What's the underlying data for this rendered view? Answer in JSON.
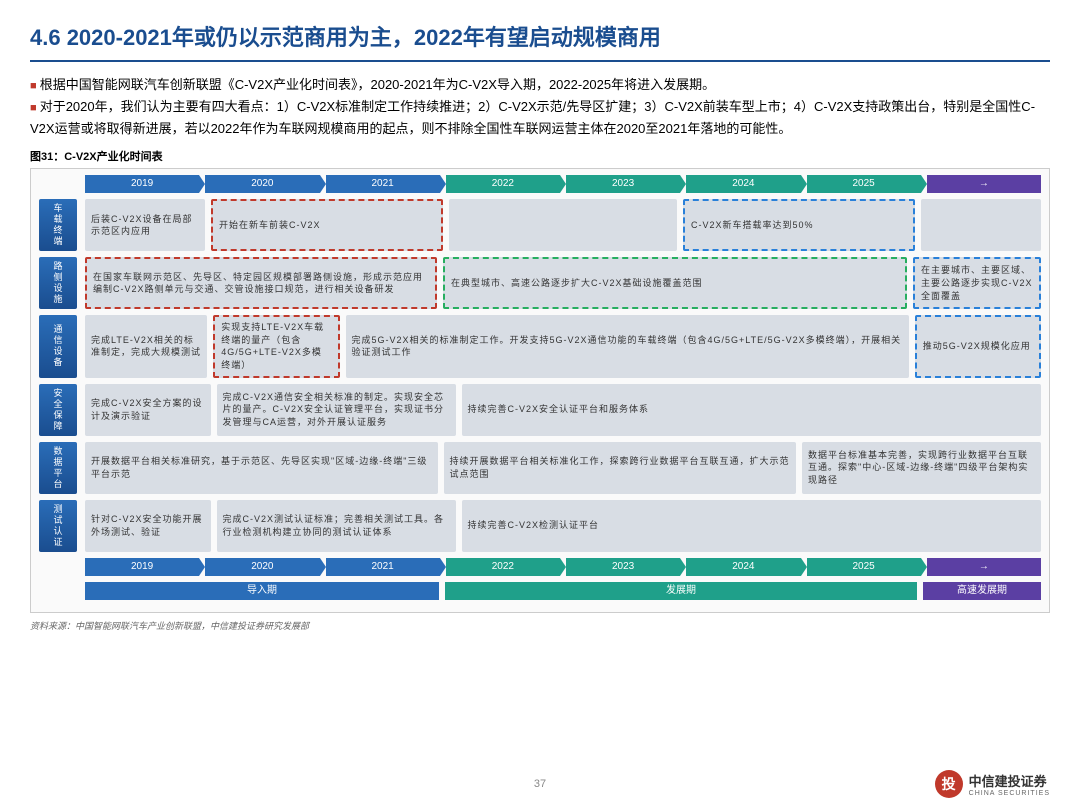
{
  "title": "4.6 2020-2021年或仍以示范商用为主，2022年有望启动规模商用",
  "bullets": [
    "根据中国智能网联汽车创新联盟《C-V2X产业化时间表》，2020-2021年为C-V2X导入期，2022-2025年将进入发展期。",
    "对于2020年，我们认为主要有四大看点：1）C-V2X标准制定工作持续推进；2）C-V2X示范/先导区扩建；3）C-V2X前装车型上市；4）C-V2X支持政策出台，特别是全国性C-V2X运营或将取得新进展，若以2022年作为车联网规模商用的起点，则不排除全国性车联网运营主体在2020至2021年落地的可能性。"
  ],
  "figcap": "图31：C-V2X产业化时间表",
  "years": [
    "2019",
    "2020",
    "2021",
    "2022",
    "2023",
    "2024",
    "2025",
    "→"
  ],
  "year_colors": [
    "#2a6db8",
    "#2a6db8",
    "#2a6db8",
    "#1fa08a",
    "#1fa08a",
    "#1fa08a",
    "#1fa08a",
    "#5b3fa3"
  ],
  "rows": [
    {
      "label": "车载终端",
      "cells": [
        {
          "span": 1,
          "text": "后装C-V2X设备在局部示范区内应用",
          "hl": ""
        },
        {
          "span": 2,
          "text": "开始在新车前装C-V2X",
          "hl": "red"
        },
        {
          "span": 2,
          "text": "",
          "hl": ""
        },
        {
          "span": 2,
          "text": "C-V2X新车搭载率达到50%",
          "hl": "blue"
        },
        {
          "span": 1,
          "text": "",
          "hl": ""
        }
      ]
    },
    {
      "label": "路侧设施",
      "cells": [
        {
          "span": 3,
          "text": "在国家车联网示范区、先导区、特定园区规模部署路侧设施，形成示范应用\n编制C-V2X路侧单元与交通、交管设施接口规范，进行相关设备研发",
          "hl": "red"
        },
        {
          "span": 4,
          "text": "在典型城市、高速公路逐步扩大C-V2X基础设施覆盖范围",
          "hl": "green"
        },
        {
          "span": 1,
          "text": "在主要城市、主要区域、主要公路逐步实现C-V2X全面覆盖",
          "hl": "blue"
        }
      ]
    },
    {
      "label": "通信设备",
      "cells": [
        {
          "span": 1,
          "text": "完成LTE-V2X相关的标准制定，完成大规模测试",
          "hl": ""
        },
        {
          "span": 1,
          "text": "实现支持LTE-V2X车载终端的量产（包含4G/5G+LTE-V2X多模终端）",
          "hl": "red"
        },
        {
          "span": 5,
          "text": "完成5G-V2X相关的标准制定工作。开发支持5G-V2X通信功能的车载终端（包含4G/5G+LTE/5G-V2X多模终端），开展相关验证测试工作",
          "hl": ""
        },
        {
          "span": 1,
          "text": "推动5G-V2X规模化应用",
          "hl": "blue"
        }
      ]
    },
    {
      "label": "安全保障",
      "cells": [
        {
          "span": 1,
          "text": "完成C-V2X安全方案的设计及演示验证",
          "hl": ""
        },
        {
          "span": 2,
          "text": "完成C-V2X通信安全相关标准的制定。实现安全芯片的量产。C-V2X安全认证管理平台，实现证书分发管理与CA运营，对外开展认证服务",
          "hl": ""
        },
        {
          "span": 5,
          "text": "持续完善C-V2X安全认证平台和服务体系",
          "hl": ""
        }
      ]
    },
    {
      "label": "数据平台",
      "cells": [
        {
          "span": 3,
          "text": "开展数据平台相关标准研究，基于示范区、先导区实现\"区域-边缘-终端\"三级平台示范",
          "hl": ""
        },
        {
          "span": 3,
          "text": "持续开展数据平台相关标准化工作，探索跨行业数据平台互联互通，扩大示范试点范围",
          "hl": ""
        },
        {
          "span": 2,
          "text": "数据平台标准基本完善，实现跨行业数据平台互联互通。探索\"中心-区域-边缘-终端\"四级平台架构实现路径",
          "hl": ""
        }
      ]
    },
    {
      "label": "测试认证",
      "cells": [
        {
          "span": 1,
          "text": "针对C-V2X安全功能开展外场测试、验证",
          "hl": ""
        },
        {
          "span": 2,
          "text": "完成C-V2X测试认证标准；完善相关测试工具。各行业检测机构建立协同的测试认证体系",
          "hl": ""
        },
        {
          "span": 5,
          "text": "持续完善C-V2X检测认证平台",
          "hl": ""
        }
      ]
    }
  ],
  "phases": [
    {
      "span": 3,
      "text": "导入期",
      "color": "#2a6db8"
    },
    {
      "span": 4,
      "text": "发展期",
      "color": "#1fa08a"
    },
    {
      "span": 1,
      "text": "高速发展期",
      "color": "#5b3fa3"
    }
  ],
  "source": "资料来源：中国智能网联汽车产业创新联盟，中信建投证券研究发展部",
  "page": "37",
  "logo_cn": "中信建投证券",
  "logo_en": "CHINA SECURITIES",
  "logo_mark": "投"
}
